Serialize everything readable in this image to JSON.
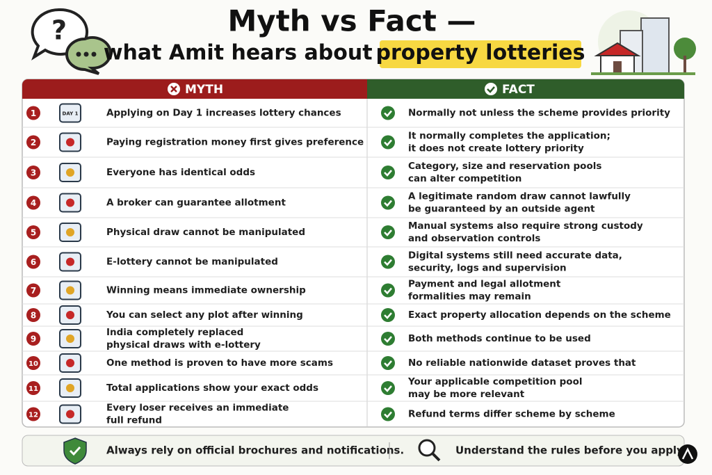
{
  "header": {
    "title": "Myth vs Fact —",
    "subtitle": "what Amit hears about ",
    "highlight": "property lotteries"
  },
  "table": {
    "myth_label": "MYTH",
    "fact_label": "FACT",
    "rows": [
      {
        "num": "1",
        "icon_text": "DAY 1",
        "myth": [
          "Applying on Day 1 increases lottery chances"
        ],
        "fact": [
          "Normally not unless the scheme provides priority"
        ]
      },
      {
        "num": "2",
        "myth": [
          "Paying registration money first gives preference"
        ],
        "fact": [
          "It normally completes the application;",
          "it does not create lottery priority"
        ]
      },
      {
        "num": "3",
        "myth": [
          "Everyone has identical odds"
        ],
        "fact": [
          "Category, size and reservation pools",
          "can alter competition"
        ]
      },
      {
        "num": "4",
        "myth": [
          "A broker can guarantee allotment"
        ],
        "fact": [
          "A legitimate random draw cannot lawfully",
          "be guaranteed by an outside agent"
        ]
      },
      {
        "num": "5",
        "myth": [
          "Physical draw cannot be manipulated"
        ],
        "fact": [
          "Manual systems also require strong custody",
          "and observation controls"
        ]
      },
      {
        "num": "6",
        "myth": [
          "E-lottery cannot be manipulated"
        ],
        "fact": [
          "Digital systems still need accurate data,",
          "security, logs and supervision"
        ]
      },
      {
        "num": "7",
        "myth": [
          "Winning means immediate ownership"
        ],
        "fact": [
          "Payment and legal allotment",
          "formalities may remain"
        ]
      },
      {
        "num": "8",
        "myth": [
          "You can select any plot after winning"
        ],
        "fact": [
          "Exact property allocation depends on the scheme"
        ]
      },
      {
        "num": "9",
        "myth": [
          "India completely replaced",
          "physical draws with e-lottery"
        ],
        "fact": [
          "Both methods continue to be used"
        ]
      },
      {
        "num": "10",
        "myth": [
          "One method is proven to have more scams"
        ],
        "fact": [
          "No reliable nationwide dataset proves that"
        ]
      },
      {
        "num": "11",
        "myth": [
          "Total applications show your exact odds"
        ],
        "fact": [
          "Your applicable competition pool",
          "may be more relevant"
        ]
      },
      {
        "num": "12",
        "myth": [
          "Every loser receives an immediate",
          "full refund"
        ],
        "fact": [
          "Refund terms differ scheme by scheme"
        ]
      }
    ]
  },
  "footer": {
    "left": "Always rely on official brochures and notifications.",
    "right": "Understand the rules before you apply."
  }
}
